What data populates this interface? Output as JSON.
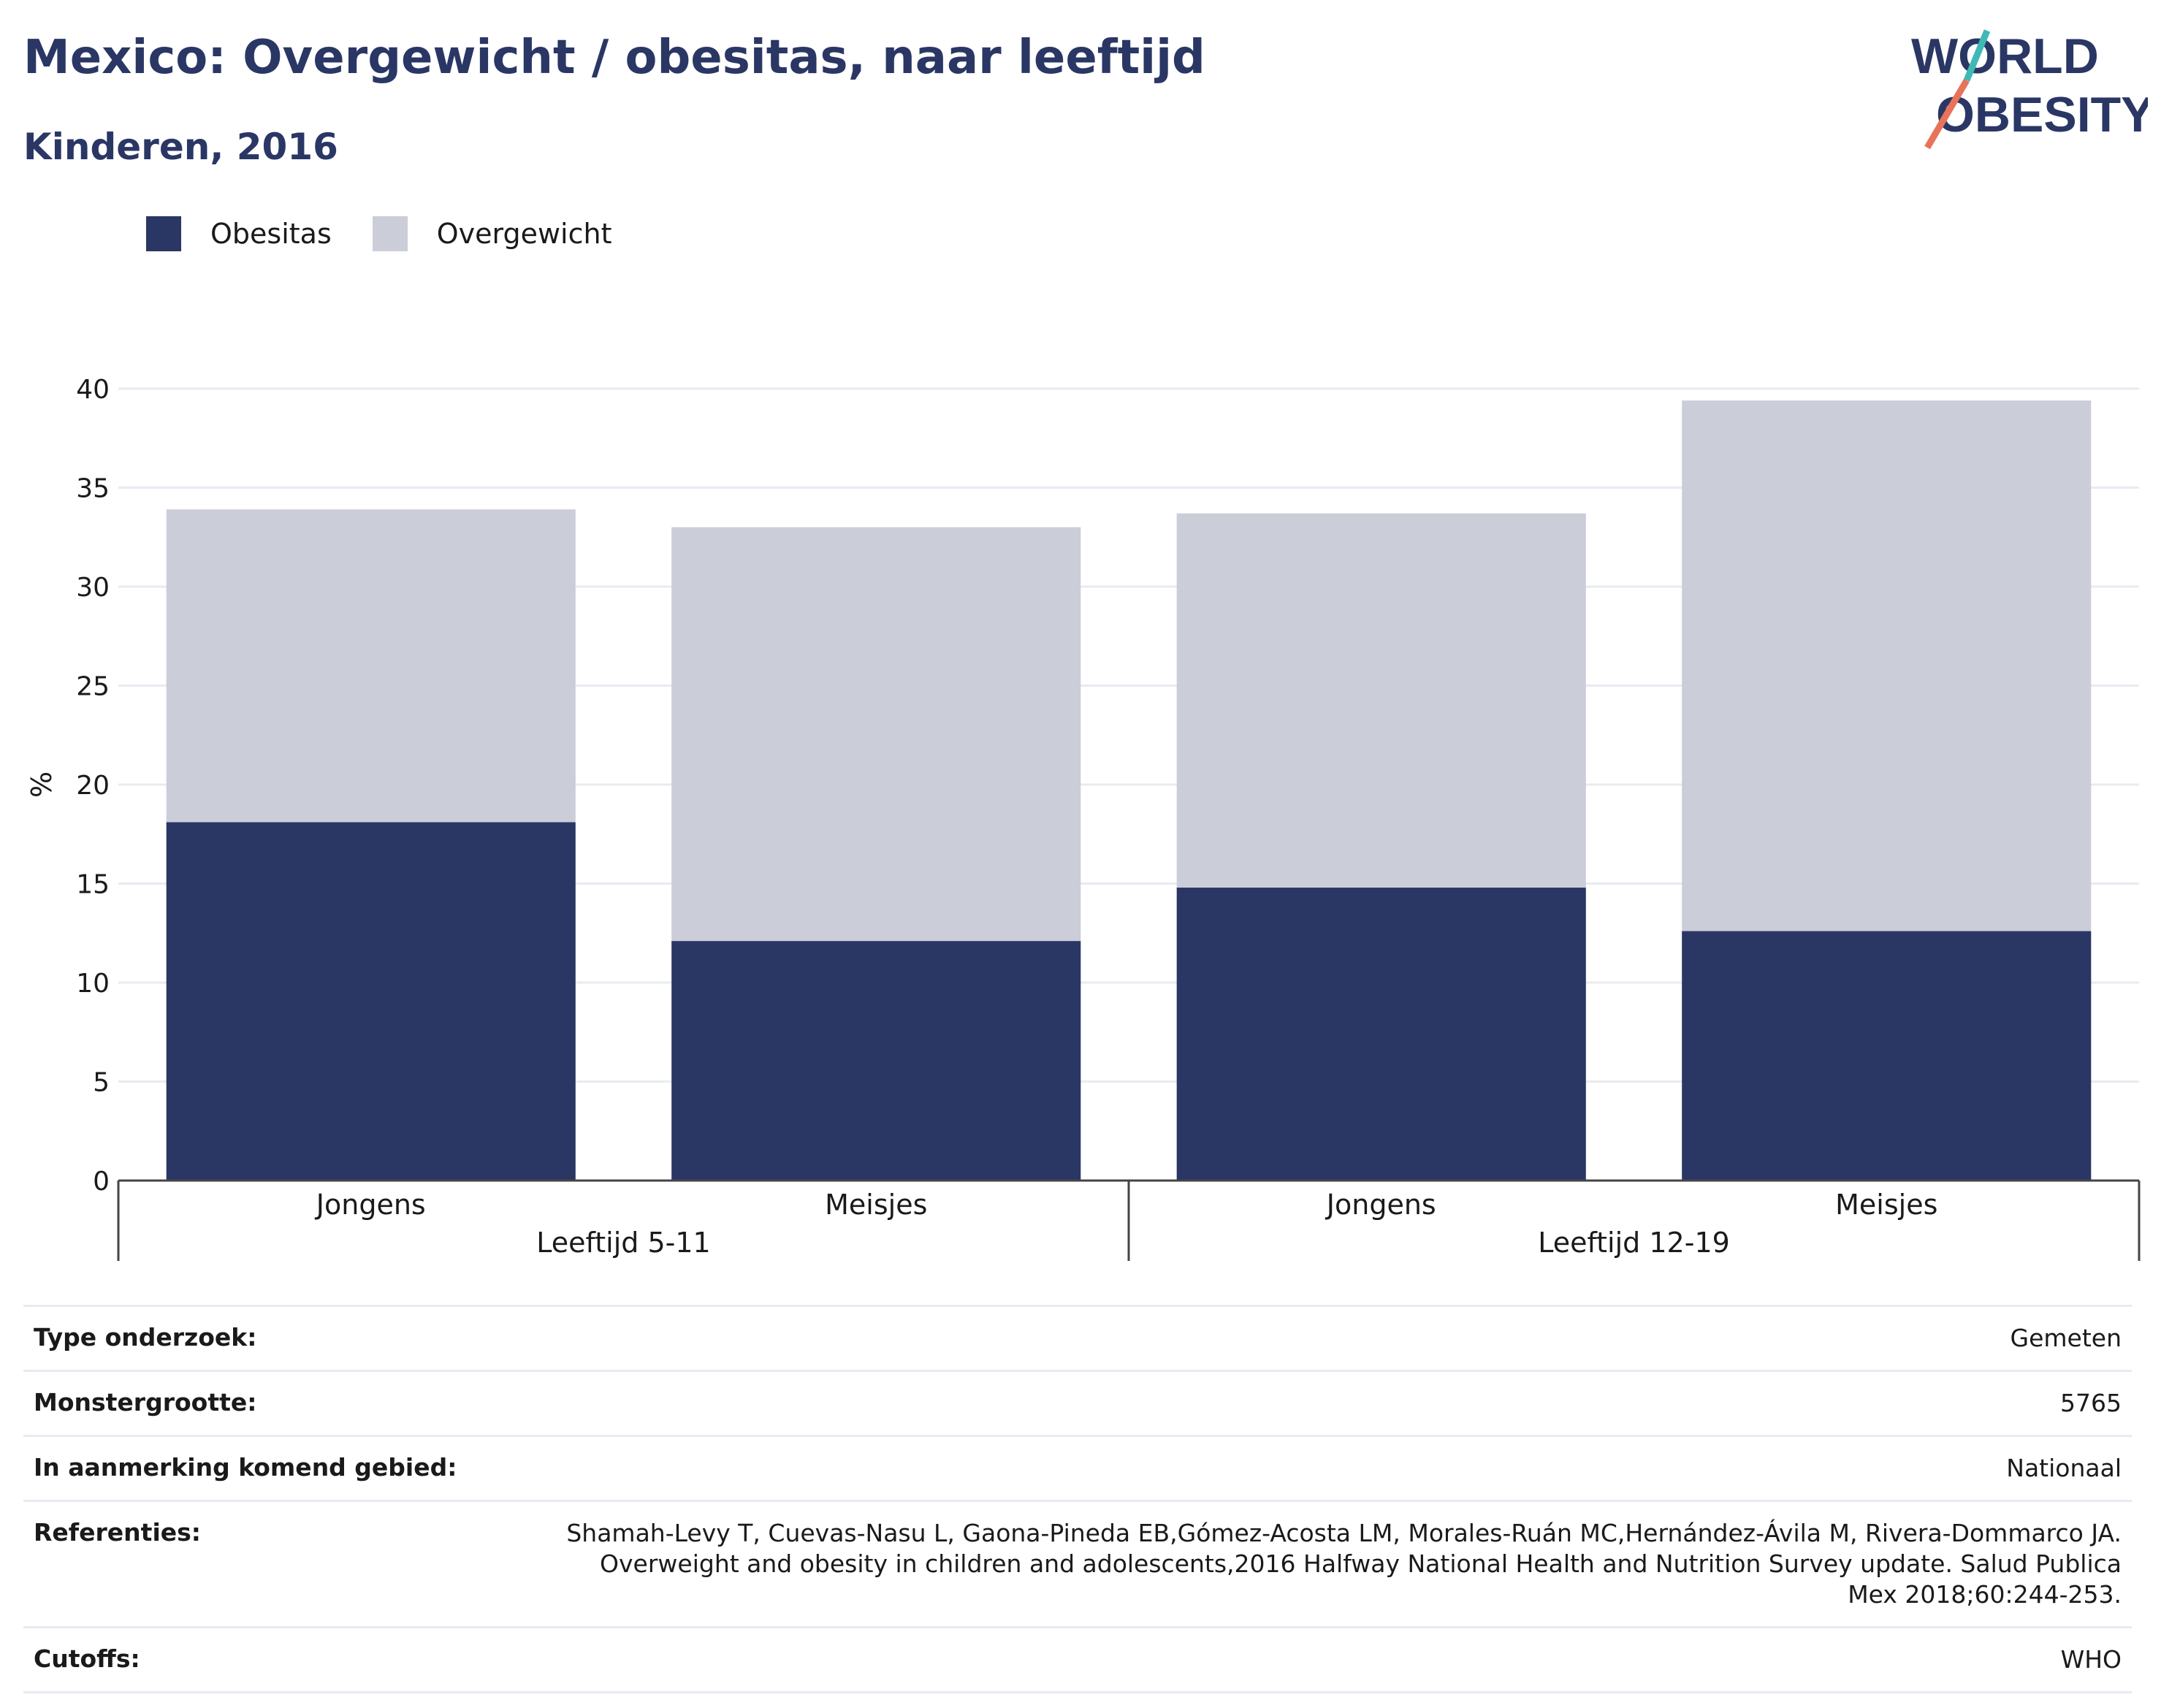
{
  "header": {
    "title": "Mexico: Overgewicht / obesitas, naar leeftijd",
    "subtitle": "Kinderen, 2016"
  },
  "logo": {
    "line1": "WORLD",
    "line2": "OBESITY",
    "colors": {
      "text": "#2a3765",
      "slash_top": "#3fb9b5",
      "slash_bottom": "#e8735a"
    }
  },
  "legend": {
    "items": [
      {
        "label": "Obesitas",
        "color": "#2a3765"
      },
      {
        "label": "Overgewicht",
        "color": "#cbcdd8"
      }
    ]
  },
  "chart_data": {
    "type": "bar",
    "stacked": true,
    "ylabel": "%",
    "ylim": [
      0,
      40
    ],
    "yticks": [
      0,
      5,
      10,
      15,
      20,
      25,
      30,
      35,
      40
    ],
    "grid": true,
    "legend_position": "top-left",
    "groups": [
      {
        "label": "Leeftijd 5-11",
        "categories": [
          "Jongens",
          "Meisjes"
        ]
      },
      {
        "label": "Leeftijd 12-19",
        "categories": [
          "Jongens",
          "Meisjes"
        ]
      }
    ],
    "categories": [
      "Jongens",
      "Meisjes",
      "Jongens",
      "Meisjes"
    ],
    "series": [
      {
        "name": "Obesitas",
        "color": "#2a3765",
        "values": [
          18.1,
          12.1,
          14.8,
          12.6
        ]
      },
      {
        "name": "Overgewicht",
        "color": "#cbcdd8",
        "values": [
          15.8,
          20.9,
          18.9,
          26.8
        ]
      }
    ]
  },
  "info": {
    "rows": [
      {
        "label": "Type onderzoek:",
        "value": "Gemeten"
      },
      {
        "label": "Monstergrootte:",
        "value": "5765"
      },
      {
        "label": "In aanmerking komend gebied:",
        "value": "Nationaal"
      },
      {
        "label": "Referenties:",
        "value": "Shamah-Levy T, Cuevas-Nasu L, Gaona-Pineda EB,Gómez-Acosta LM, Morales-Ruán MC,Hernández-Ávila M, Rivera-Dommarco JA. Overweight and obesity in children and adolescents,2016 Halfway National Health and Nutrition Survey update. Salud Publica Mex 2018;60:244-253."
      },
      {
        "label": "Cutoffs:",
        "value": "WHO"
      }
    ]
  }
}
